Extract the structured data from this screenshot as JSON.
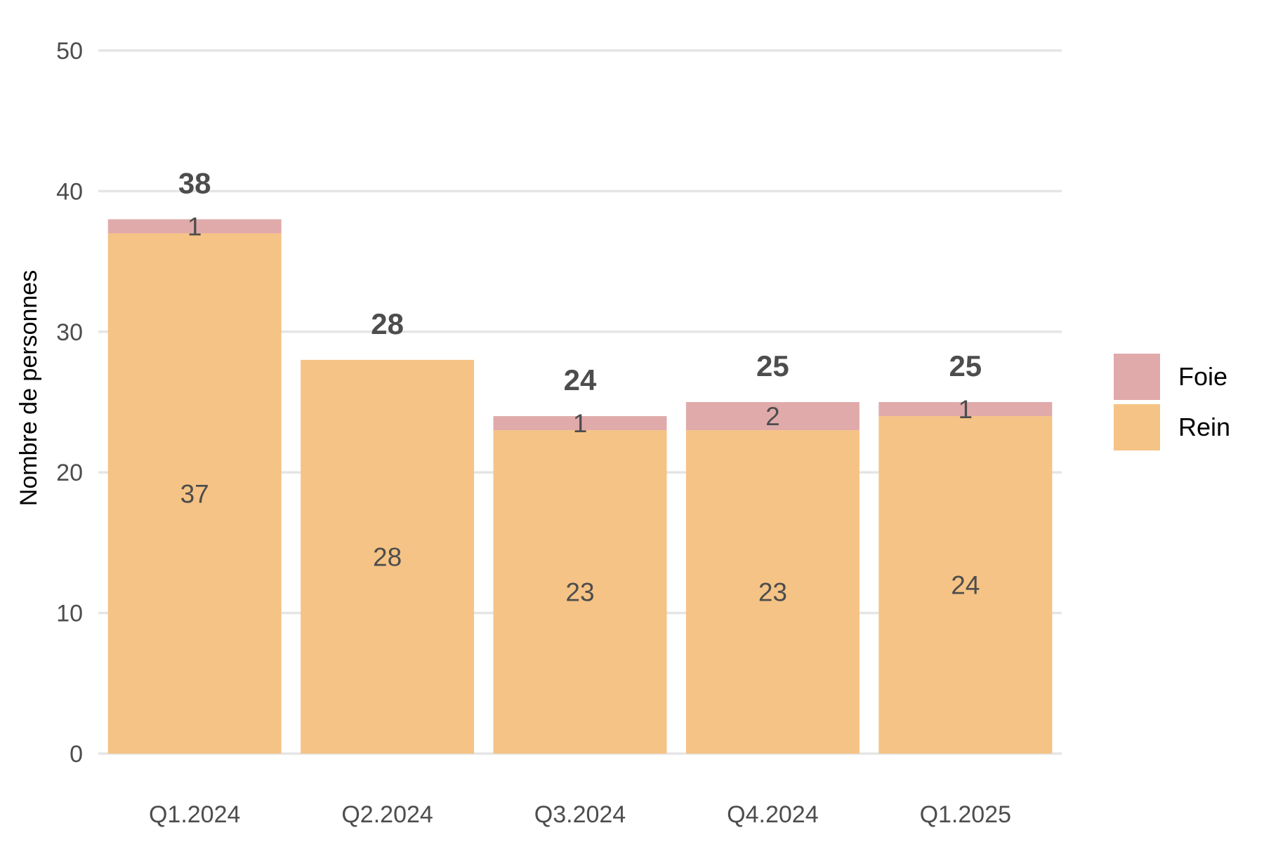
{
  "chart_data": {
    "type": "bar",
    "stacked": true,
    "categories": [
      "Q1.2024",
      "Q2.2024",
      "Q3.2024",
      "Q4.2024",
      "Q1.2025"
    ],
    "series": [
      {
        "name": "Rein",
        "values": [
          37,
          28,
          23,
          23,
          24
        ],
        "labels": [
          "37",
          "28",
          "23",
          "23",
          "24"
        ],
        "color": "#F5C385"
      },
      {
        "name": "Foie",
        "values": [
          1,
          0,
          1,
          2,
          1
        ],
        "labels": [
          "1",
          "",
          "1",
          "2",
          "1"
        ],
        "color": "#E0AAAB"
      }
    ],
    "totals": [
      "38",
      "28",
      "24",
      "25",
      "25"
    ],
    "ylabel": "Nombre de personnes",
    "ylim": [
      0,
      50
    ],
    "yticks": [
      "0",
      "10",
      "20",
      "30",
      "40",
      "50"
    ],
    "grid": true,
    "legend_position": "right",
    "legend_order": [
      "Foie",
      "Rein"
    ]
  }
}
